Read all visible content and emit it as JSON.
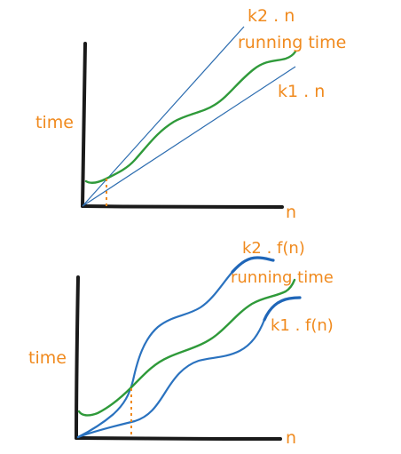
{
  "top_diagram": {
    "y_axis_label": "time",
    "x_axis_label": "n",
    "upper_bound_label": "k2 . n",
    "curve_label": "running time",
    "lower_bound_label": "k1 . n"
  },
  "bottom_diagram": {
    "y_axis_label": "time",
    "x_axis_label": "n",
    "upper_bound_label": "k2 . f(n)",
    "curve_label": "running time",
    "lower_bound_label": "k1 . f(n)"
  },
  "colors": {
    "label": "#f08a1e",
    "axis": "#1a1a1a",
    "bound_lines": "#2d6db0",
    "running_time_curve": "#2f9a3a"
  }
}
